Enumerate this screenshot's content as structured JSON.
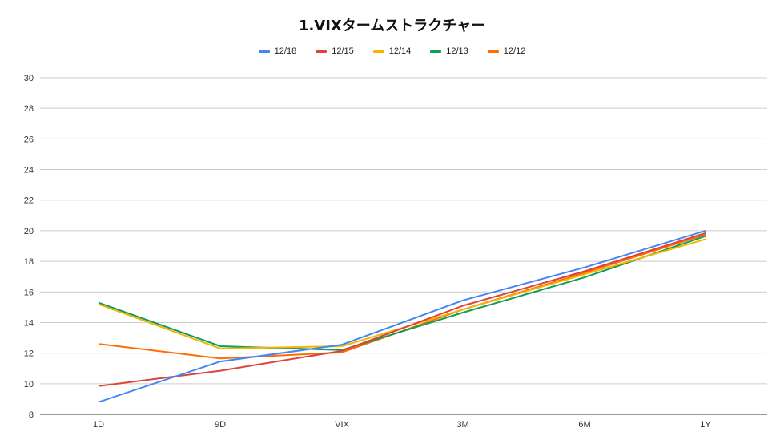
{
  "chart_data": {
    "type": "line",
    "title": "1.VIXタームストラクチャー",
    "categories": [
      "1D",
      "9D",
      "VIX",
      "3M",
      "6M",
      "1Y"
    ],
    "ylim": [
      8,
      30
    ],
    "yticks": [
      8,
      10,
      12,
      14,
      16,
      18,
      20,
      22,
      24,
      26,
      28,
      30
    ],
    "grid": true,
    "legend": "top-center",
    "series": [
      {
        "name": "12/18",
        "color": "#4285f4",
        "values": [
          8.8,
          11.45,
          12.55,
          15.45,
          17.6,
          20.0
        ]
      },
      {
        "name": "12/15",
        "color": "#db4437",
        "values": [
          9.85,
          10.85,
          12.15,
          15.1,
          17.35,
          19.85
        ]
      },
      {
        "name": "12/14",
        "color": "#f4b400",
        "values": [
          15.2,
          12.3,
          12.45,
          14.85,
          17.15,
          19.45
        ]
      },
      {
        "name": "12/13",
        "color": "#0f9d58",
        "values": [
          15.3,
          12.45,
          12.2,
          14.65,
          16.95,
          19.65
        ]
      },
      {
        "name": "12/12",
        "color": "#ff6d01",
        "values": [
          12.6,
          11.65,
          12.05,
          14.85,
          17.25,
          19.75
        ]
      }
    ]
  }
}
